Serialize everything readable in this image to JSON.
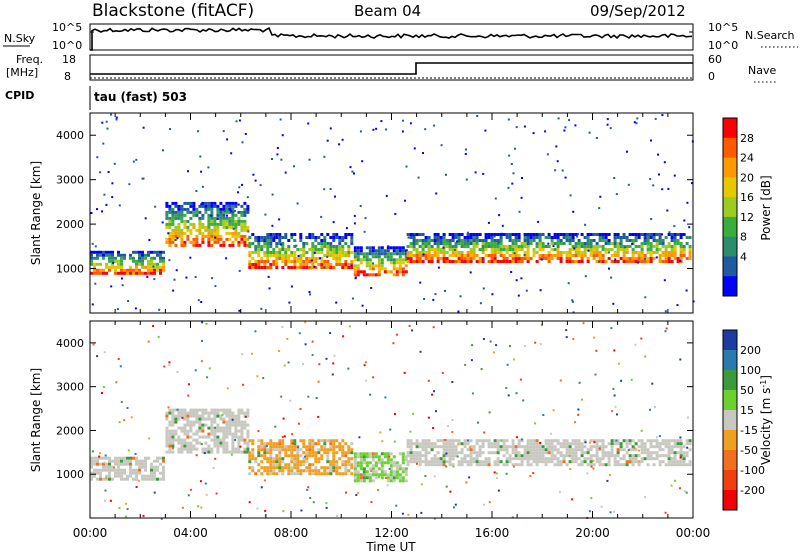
{
  "header": {
    "station": "Blackstone (fitACF)",
    "beam": "Beam 04",
    "date": "09/Sep/2012"
  },
  "params": {
    "nsky_label": "N.Sky",
    "nsky_ticks": [
      "10^5",
      "10^0"
    ],
    "nsearch_label": "N.Search",
    "nsearch_ticks": [
      "10^5",
      "10^0"
    ],
    "freq_label": "Freq.",
    "freq_unit": "[MHz]",
    "freq_ticks": [
      "18",
      "8"
    ],
    "nave_label": "Nave",
    "nave_ticks": [
      "60",
      "0"
    ],
    "cpid_label": "CPID",
    "cpid_value": "tau (fast) 503"
  },
  "chart_data": [
    {
      "type": "heatmap",
      "name": "power",
      "ylabel": "Slant Range [km]",
      "yticks": [
        "1000",
        "2000",
        "3000",
        "4000"
      ],
      "ylim": [
        0,
        4500
      ],
      "xlim_hours": [
        0,
        24
      ],
      "colorbar_label": "Power [dB]",
      "colorbar_ticks": [
        "28",
        "24",
        "20",
        "16",
        "12",
        "8",
        "4"
      ],
      "colorbar_colors": [
        "#ff0000",
        "#ff5a00",
        "#ff9a00",
        "#e6c800",
        "#9ccc20",
        "#3cac3c",
        "#2c8c6c",
        "#1e5aa0",
        "#0000ff"
      ],
      "bands": [
        {
          "t0": 0.0,
          "t1": 3.0,
          "r0": 850,
          "r1": 1400
        },
        {
          "t0": 3.0,
          "t1": 6.3,
          "r0": 1500,
          "r1": 2500
        },
        {
          "t0": 6.3,
          "t1": 10.5,
          "r0": 1000,
          "r1": 1800
        },
        {
          "t0": 10.5,
          "t1": 12.6,
          "r0": 800,
          "r1": 1500
        },
        {
          "t0": 12.6,
          "t1": 24.0,
          "r0": 1150,
          "r1": 1800
        }
      ]
    },
    {
      "type": "heatmap",
      "name": "velocity",
      "ylabel": "Slant Range [km]",
      "yticks": [
        "1000",
        "2000",
        "3000",
        "4000"
      ],
      "ylim": [
        0,
        4500
      ],
      "xlim_hours": [
        0,
        24
      ],
      "colorbar_label": "Velocity [m s",
      "colorbar_label_sup": "-1",
      "colorbar_label_end": "]",
      "colorbar_ticks": [
        "200",
        "100",
        "50",
        "15",
        "-15",
        "-50",
        "-100",
        "-200"
      ],
      "colorbar_colors": [
        "#1e3ca0",
        "#2a7ab0",
        "#3c9a3c",
        "#6cd030",
        "#c8c8c0",
        "#f0a020",
        "#f07020",
        "#f04010",
        "#f00000"
      ],
      "bands": [
        {
          "t0": 0.0,
          "t1": 3.0,
          "r0": 850,
          "r1": 1400
        },
        {
          "t0": 3.0,
          "t1": 6.3,
          "r0": 1500,
          "r1": 2500
        },
        {
          "t0": 6.3,
          "t1": 10.5,
          "r0": 1000,
          "r1": 1800
        },
        {
          "t0": 10.5,
          "t1": 12.6,
          "r0": 800,
          "r1": 1500
        },
        {
          "t0": 12.6,
          "t1": 24.0,
          "r0": 1150,
          "r1": 1800
        }
      ]
    }
  ],
  "xaxis": {
    "label": "Time UT",
    "ticks": [
      "00:00",
      "04:00",
      "08:00",
      "12:00",
      "16:00",
      "20:00",
      "00:00"
    ]
  }
}
